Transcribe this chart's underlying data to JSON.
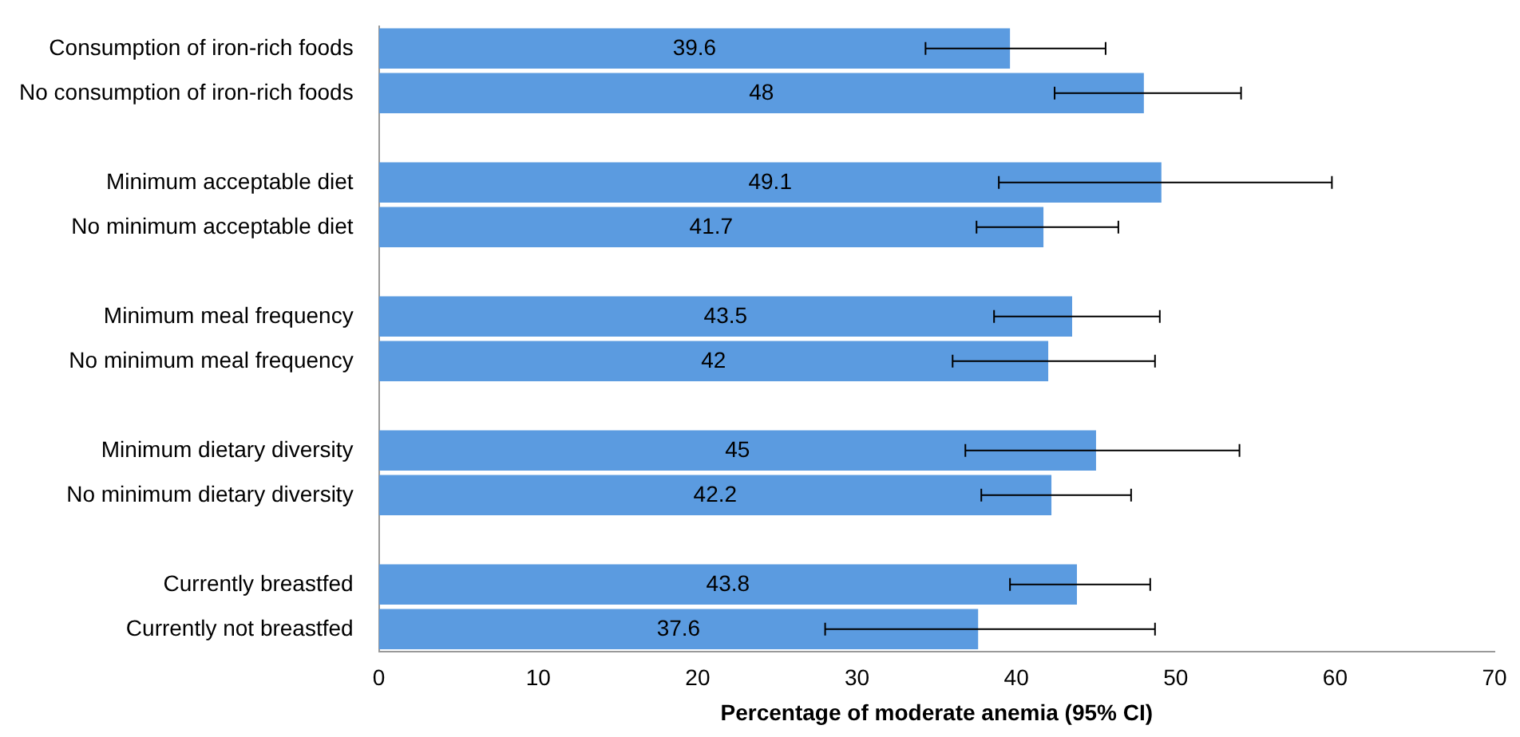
{
  "chart_data": {
    "type": "bar",
    "orientation": "horizontal",
    "xlabel": "Percentage of moderate anemia (95% CI)",
    "categories": [
      "Consumption of iron-rich foods",
      "No consumption of iron-rich foods",
      null,
      "Minimum acceptable diet",
      "No minimum acceptable diet",
      null,
      "Minimum meal frequency",
      "No minimum meal frequency",
      null,
      "Minimum dietary diversity",
      "No minimum dietary diversity",
      null,
      "Currently breastfed",
      "Currently not breastfed"
    ],
    "values": [
      39.6,
      48,
      null,
      49.1,
      41.7,
      null,
      43.5,
      42,
      null,
      45,
      42.2,
      null,
      43.8,
      37.6
    ],
    "errors": [
      [
        34.3,
        45.6
      ],
      [
        42.4,
        54.1
      ],
      null,
      [
        38.9,
        59.8
      ],
      [
        37.5,
        46.4
      ],
      null,
      [
        38.6,
        49.0
      ],
      [
        36.0,
        48.7
      ],
      null,
      [
        36.8,
        54.0
      ],
      [
        37.8,
        47.2
      ],
      null,
      [
        39.6,
        48.4
      ],
      [
        28.0,
        48.7
      ]
    ],
    "color": "#5b9be0",
    "xlim": [
      0,
      70
    ],
    "xticks": [
      0,
      10,
      20,
      30,
      40,
      50,
      60,
      70
    ],
    "data_labels": true,
    "grid": false,
    "legend": false
  }
}
